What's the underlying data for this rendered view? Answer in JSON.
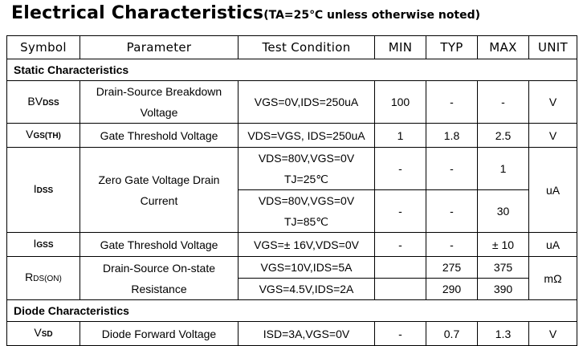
{
  "title": {
    "main": "Electrical Characteristics",
    "sub": "(TA=25℃ unless otherwise noted)"
  },
  "headers": {
    "symbol": "Symbol",
    "parameter": "Parameter",
    "test_condition": "Test Condition",
    "min": "MIN",
    "typ": "TYP",
    "max": "MAX",
    "unit": "UNIT"
  },
  "sections": {
    "static": "Static Characteristics",
    "diode": "Diode Characteristics"
  },
  "rows": {
    "bvdss": {
      "sym_main": "BV",
      "sym_sub": "DSS",
      "param_line1": "Drain-Source Breakdown",
      "param_line2": "Voltage",
      "cond": "VGS=0V,IDS=250uA",
      "min": "100",
      "typ": "-",
      "max": "-",
      "unit": "V"
    },
    "vgsth": {
      "sym_main": "V",
      "sym_sub": "GS(TH)",
      "param": "Gate Threshold Voltage",
      "cond": "VDS=VGS, IDS=250uA",
      "min": "1",
      "typ": "1.8",
      "max": "2.5",
      "unit": "V"
    },
    "idss": {
      "sym_main": "I",
      "sym_sub": "DSS",
      "param_line1": "Zero Gate Voltage Drain",
      "param_line2": "Current",
      "cond1_line1": "VDS=80V,VGS=0V",
      "cond1_line2": "TJ=25℃",
      "min1": "-",
      "typ1": "-",
      "max1": "1",
      "cond2_line1": "VDS=80V,VGS=0V",
      "cond2_line2": "TJ=85℃",
      "min2": "-",
      "typ2": "-",
      "max2": "30",
      "unit": "uA"
    },
    "igss": {
      "sym_main": "I",
      "sym_sub": "GSS",
      "param": "Gate Threshold Voltage",
      "cond": "VGS=± 16V,VDS=0V",
      "min": "-",
      "typ": "-",
      "max": "± 10",
      "unit": "uA"
    },
    "rdson": {
      "sym_main": "R",
      "sym_sub": "DS(ON)",
      "param_line1": "Drain-Source On-state",
      "param_line2": "Resistance",
      "cond1": "VGS=10V,IDS=5A",
      "min1": "",
      "typ1": "275",
      "max1": "375",
      "cond2": "VGS=4.5V,IDS=2A",
      "min2": "",
      "typ2": "290",
      "max2": "390",
      "unit": "mΩ"
    },
    "vsd": {
      "sym_main": "V",
      "sym_sub": "SD",
      "param": "Diode Forward Voltage",
      "cond": "ISD=3A,VGS=0V",
      "min": "-",
      "typ": "0.7",
      "max": "1.3",
      "unit": "V"
    }
  }
}
